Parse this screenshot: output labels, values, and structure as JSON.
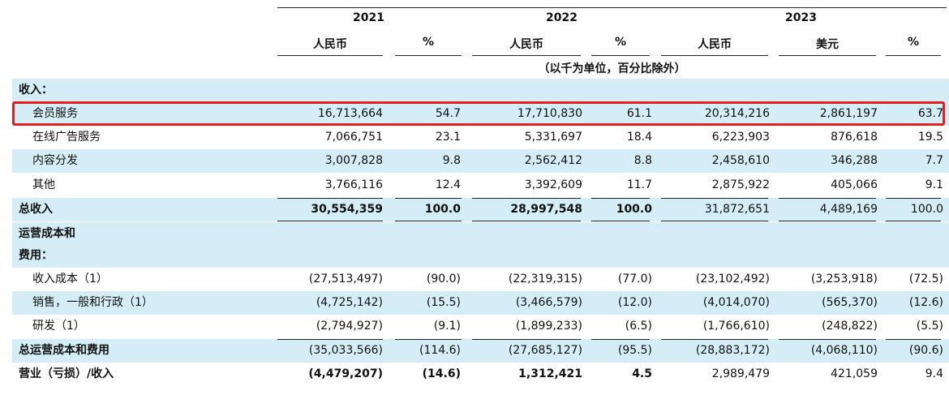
{
  "header": {
    "years": [
      "2021",
      "2022",
      "2023"
    ],
    "col_labels": [
      "人民币",
      "%",
      "人民币",
      "%",
      "人民币",
      "美元",
      "%"
    ],
    "unit_note": "（以千为单位，百分比除外）"
  },
  "rows": [
    {
      "label": "收入：",
      "values": [
        "",
        "",
        "",
        "",
        "",
        "",
        ""
      ]
    },
    {
      "label": "会员服务",
      "values": [
        "16,713,664",
        "54.7",
        "17,710,830",
        "61.1",
        "20,314,216",
        "2,861,197",
        "63.7"
      ]
    },
    {
      "label": "在线广告服务",
      "values": [
        "7,066,751",
        "23.1",
        "5,331,697",
        "18.4",
        "6,223,903",
        "876,618",
        "19.5"
      ]
    },
    {
      "label": "内容分发",
      "values": [
        "3,007,828",
        "9.8",
        "2,562,412",
        "8.8",
        "2,458,610",
        "346,288",
        "7.7"
      ]
    },
    {
      "label": "其他",
      "values": [
        "3,766,116",
        "12.4",
        "3,392,609",
        "11.7",
        "2,875,922",
        "405,066",
        "9.1"
      ]
    },
    {
      "label": "总收入",
      "values": [
        "30,554,359",
        "100.0",
        "28,997,548",
        "100.0",
        "31,872,651",
        "4,489,169",
        "100.0"
      ]
    },
    {
      "label": "运营成本和",
      "values": [
        "",
        "",
        "",
        "",
        "",
        "",
        ""
      ]
    },
    {
      "label": "费用：",
      "values": [
        "",
        "",
        "",
        "",
        "",
        "",
        ""
      ]
    },
    {
      "label": "收入成本（1）",
      "values": [
        "(27,513,497)",
        "(90.0)",
        "(22,319,315)",
        "(77.0)",
        "(23,102,492)",
        "(3,253,918)",
        "(72.5)"
      ]
    },
    {
      "label": "销售，一般和行政（1）",
      "values": [
        "(4,725,142)",
        "(15.5)",
        "(3,466,579)",
        "(12.0)",
        "(4,014,070)",
        "(565,370)",
        "(12.6)"
      ]
    },
    {
      "label": "研发（1）",
      "values": [
        "(2,794,927)",
        "(9.1)",
        "(1,899,233)",
        "(6.5)",
        "(1,766,610)",
        "(248,822)",
        "(5.5)"
      ]
    },
    {
      "label": "总运营成本和费用",
      "values": [
        "(35,033,566)",
        "(114.6)",
        "(27,685,127)",
        "(95.5)",
        "(28,883,172)",
        "(4,068,110)",
        "(90.6)"
      ]
    },
    {
      "label": "营业（亏损）/收入",
      "values": [
        "(4,479,207)",
        "(14.6)",
        "1,312,421",
        "4.5",
        "2,989,479",
        "421,059",
        "9.4"
      ]
    }
  ]
}
